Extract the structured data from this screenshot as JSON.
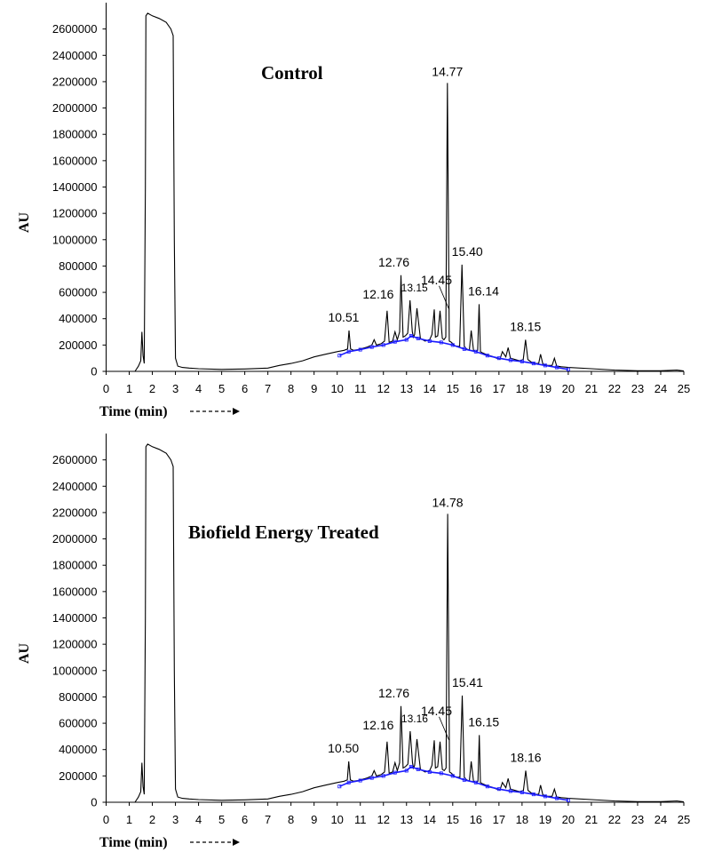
{
  "chart_data": [
    {
      "type": "line",
      "title": "Control",
      "xlabel": "Time (min)",
      "ylabel": "AU",
      "xlim": [
        0,
        25
      ],
      "ylim": [
        0,
        2800000
      ],
      "x_ticks": [
        "0",
        "1",
        "2",
        "3",
        "4",
        "5",
        "6",
        "7",
        "8",
        "9",
        "10",
        "11",
        "12",
        "13",
        "14",
        "15",
        "16",
        "17",
        "18",
        "19",
        "20",
        "21",
        "22",
        "23",
        "24",
        "25"
      ],
      "y_ticks": [
        "0",
        "200000",
        "400000",
        "600000",
        "800000",
        "1000000",
        "1200000",
        "1400000",
        "1600000",
        "1800000",
        "2000000",
        "2200000",
        "2400000",
        "2600000"
      ],
      "series": [
        {
          "color": "#000000",
          "x": [
            0,
            1.0,
            1.25,
            1.4,
            1.5,
            1.55,
            1.6,
            1.65,
            1.7,
            1.72,
            1.8,
            2.0,
            2.3,
            2.6,
            2.8,
            2.9,
            2.95,
            3.0,
            3.1,
            3.3,
            3.6,
            4.0,
            5.0,
            6.0,
            7.0,
            7.5,
            8.0,
            8.5,
            9.0,
            9.5,
            10.0,
            10.3,
            10.45,
            10.51,
            10.58,
            10.7,
            10.9,
            11.1,
            11.3,
            11.5,
            11.6,
            11.7,
            11.9,
            12.05,
            12.16,
            12.25,
            12.4,
            12.5,
            12.6,
            12.7,
            12.76,
            12.85,
            12.95,
            13.05,
            13.15,
            13.25,
            13.3,
            13.35,
            13.45,
            13.6,
            13.8,
            14.0,
            14.1,
            14.2,
            14.25,
            14.35,
            14.45,
            14.55,
            14.62,
            14.7,
            14.77,
            14.85,
            14.95,
            15.05,
            15.15,
            15.3,
            15.4,
            15.5,
            15.6,
            15.72,
            15.8,
            15.9,
            16.0,
            16.08,
            16.14,
            16.2,
            16.3,
            16.5,
            16.7,
            16.9,
            17.05,
            17.15,
            17.3,
            17.4,
            17.5,
            17.7,
            17.9,
            18.05,
            18.15,
            18.25,
            18.4,
            18.6,
            18.72,
            18.8,
            18.9,
            19.1,
            19.3,
            19.4,
            19.5,
            19.7,
            20.0,
            21.0,
            22.0,
            23.0,
            24.0,
            24.7,
            25.0
          ],
          "y": [
            0,
            0,
            0,
            40000,
            80000,
            300000,
            120000,
            60000,
            1400000,
            2700000,
            2720000,
            2700000,
            2680000,
            2650000,
            2600000,
            2550000,
            1000000,
            100000,
            40000,
            30000,
            25000,
            20000,
            15000,
            18000,
            25000,
            45000,
            60000,
            80000,
            110000,
            130000,
            150000,
            160000,
            170000,
            310000,
            170000,
            160000,
            165000,
            175000,
            185000,
            200000,
            240000,
            200000,
            210000,
            230000,
            460000,
            220000,
            230000,
            300000,
            240000,
            300000,
            730000,
            260000,
            270000,
            290000,
            540000,
            300000,
            260000,
            280000,
            480000,
            250000,
            230000,
            240000,
            280000,
            470000,
            260000,
            270000,
            460000,
            250000,
            240000,
            260000,
            2190000,
            230000,
            220000,
            200000,
            190000,
            190000,
            810000,
            190000,
            170000,
            160000,
            310000,
            160000,
            150000,
            160000,
            510000,
            150000,
            140000,
            125000,
            115000,
            100000,
            95000,
            150000,
            110000,
            180000,
            100000,
            90000,
            80000,
            90000,
            240000,
            90000,
            70000,
            60000,
            60000,
            130000,
            55000,
            45000,
            45000,
            100000,
            40000,
            35000,
            30000,
            20000,
            10000,
            5000,
            5000,
            10000,
            3000
          ]
        },
        {
          "color": "#1a1aff",
          "x": [
            10.1,
            10.5,
            11.0,
            11.5,
            12.0,
            12.5,
            13.0,
            13.2,
            13.5,
            14.0,
            14.5,
            15.0,
            15.5,
            16.0,
            16.5,
            17.0,
            17.5,
            18.0,
            18.5,
            19.0,
            19.5,
            20.0
          ],
          "y": [
            120000,
            150000,
            165000,
            185000,
            200000,
            225000,
            240000,
            270000,
            250000,
            230000,
            220000,
            200000,
            170000,
            150000,
            120000,
            100000,
            85000,
            75000,
            60000,
            45000,
            30000,
            15000
          ]
        }
      ],
      "annotations": [
        {
          "text": "10.51",
          "x": 10.51,
          "y": 310000
        },
        {
          "text": "12.16",
          "x": 12.16,
          "y": 460000
        },
        {
          "text": "12.76",
          "x": 12.76,
          "y": 730000
        },
        {
          "text": "13.15",
          "x": 13.15,
          "y": 540000
        },
        {
          "text": "14.45",
          "x": 14.45,
          "y": 460000
        },
        {
          "text": "14.77",
          "x": 14.77,
          "y": 2190000
        },
        {
          "text": "15.40",
          "x": 15.4,
          "y": 810000
        },
        {
          "text": "16.14",
          "x": 16.14,
          "y": 510000
        },
        {
          "text": "18.15",
          "x": 18.15,
          "y": 240000
        }
      ]
    },
    {
      "type": "line",
      "title": "Biofield Energy Treated",
      "xlabel": "Time (min)",
      "ylabel": "AU",
      "xlim": [
        0,
        25
      ],
      "ylim": [
        0,
        2800000
      ],
      "x_ticks": [
        "0",
        "1",
        "2",
        "3",
        "4",
        "5",
        "6",
        "7",
        "8",
        "9",
        "10",
        "11",
        "12",
        "13",
        "14",
        "15",
        "16",
        "17",
        "18",
        "19",
        "20",
        "21",
        "22",
        "23",
        "24",
        "25"
      ],
      "y_ticks": [
        "0",
        "200000",
        "400000",
        "600000",
        "800000",
        "1000000",
        "1200000",
        "1400000",
        "1600000",
        "1800000",
        "2000000",
        "2200000",
        "2400000",
        "2600000"
      ],
      "series": [
        {
          "color": "#000000",
          "x": [
            0,
            1.0,
            1.25,
            1.4,
            1.5,
            1.55,
            1.6,
            1.65,
            1.7,
            1.72,
            1.8,
            2.0,
            2.3,
            2.6,
            2.8,
            2.9,
            2.95,
            3.0,
            3.1,
            3.3,
            3.6,
            4.0,
            5.0,
            6.0,
            7.0,
            7.5,
            8.0,
            8.5,
            9.0,
            9.5,
            10.0,
            10.3,
            10.44,
            10.5,
            10.57,
            10.7,
            10.9,
            11.1,
            11.3,
            11.5,
            11.6,
            11.7,
            11.9,
            12.05,
            12.16,
            12.25,
            12.4,
            12.5,
            12.6,
            12.7,
            12.76,
            12.85,
            12.95,
            13.06,
            13.16,
            13.26,
            13.3,
            13.35,
            13.45,
            13.6,
            13.8,
            14.0,
            14.1,
            14.2,
            14.25,
            14.35,
            14.45,
            14.55,
            14.63,
            14.71,
            14.78,
            14.86,
            14.95,
            15.05,
            15.15,
            15.31,
            15.41,
            15.5,
            15.6,
            15.72,
            15.8,
            15.9,
            16.0,
            16.09,
            16.15,
            16.2,
            16.3,
            16.5,
            16.7,
            16.9,
            17.05,
            17.15,
            17.3,
            17.4,
            17.5,
            17.7,
            17.9,
            18.06,
            18.16,
            18.26,
            18.4,
            18.6,
            18.72,
            18.8,
            18.9,
            19.1,
            19.3,
            19.4,
            19.5,
            19.7,
            20.0,
            21.0,
            22.0,
            23.0,
            24.0,
            24.7,
            25.0
          ],
          "y": [
            0,
            0,
            0,
            40000,
            80000,
            300000,
            120000,
            60000,
            1400000,
            2700000,
            2720000,
            2700000,
            2680000,
            2650000,
            2600000,
            2550000,
            1000000,
            100000,
            40000,
            30000,
            25000,
            20000,
            15000,
            18000,
            25000,
            45000,
            60000,
            80000,
            110000,
            130000,
            150000,
            160000,
            170000,
            310000,
            170000,
            160000,
            165000,
            175000,
            185000,
            200000,
            240000,
            200000,
            210000,
            230000,
            460000,
            220000,
            230000,
            300000,
            240000,
            300000,
            730000,
            260000,
            270000,
            290000,
            540000,
            300000,
            260000,
            280000,
            480000,
            250000,
            230000,
            240000,
            280000,
            470000,
            260000,
            270000,
            460000,
            250000,
            240000,
            260000,
            2190000,
            230000,
            220000,
            200000,
            190000,
            190000,
            810000,
            190000,
            170000,
            160000,
            310000,
            160000,
            150000,
            160000,
            510000,
            150000,
            140000,
            125000,
            115000,
            100000,
            95000,
            150000,
            110000,
            180000,
            100000,
            90000,
            80000,
            90000,
            240000,
            90000,
            70000,
            60000,
            60000,
            130000,
            55000,
            45000,
            45000,
            100000,
            40000,
            35000,
            30000,
            20000,
            10000,
            5000,
            5000,
            10000,
            3000
          ]
        },
        {
          "color": "#1a1aff",
          "x": [
            10.1,
            10.5,
            11.0,
            11.5,
            12.0,
            12.5,
            13.0,
            13.2,
            13.5,
            14.0,
            14.5,
            15.0,
            15.5,
            16.0,
            16.5,
            17.0,
            17.5,
            18.0,
            18.5,
            19.0,
            19.5,
            20.0
          ],
          "y": [
            120000,
            150000,
            165000,
            185000,
            200000,
            225000,
            240000,
            270000,
            250000,
            230000,
            220000,
            200000,
            170000,
            150000,
            120000,
            100000,
            85000,
            75000,
            60000,
            45000,
            30000,
            15000
          ]
        }
      ],
      "annotations": [
        {
          "text": "10.50",
          "x": 10.5,
          "y": 310000
        },
        {
          "text": "12.16",
          "x": 12.16,
          "y": 460000
        },
        {
          "text": "12.76",
          "x": 12.76,
          "y": 730000
        },
        {
          "text": "13.16",
          "x": 13.16,
          "y": 540000
        },
        {
          "text": "14.45",
          "x": 14.45,
          "y": 460000
        },
        {
          "text": "14.78",
          "x": 14.78,
          "y": 2190000
        },
        {
          "text": "15.41",
          "x": 15.41,
          "y": 810000
        },
        {
          "text": "16.15",
          "x": 16.15,
          "y": 510000
        },
        {
          "text": "18.16",
          "x": 18.16,
          "y": 240000
        }
      ]
    }
  ]
}
